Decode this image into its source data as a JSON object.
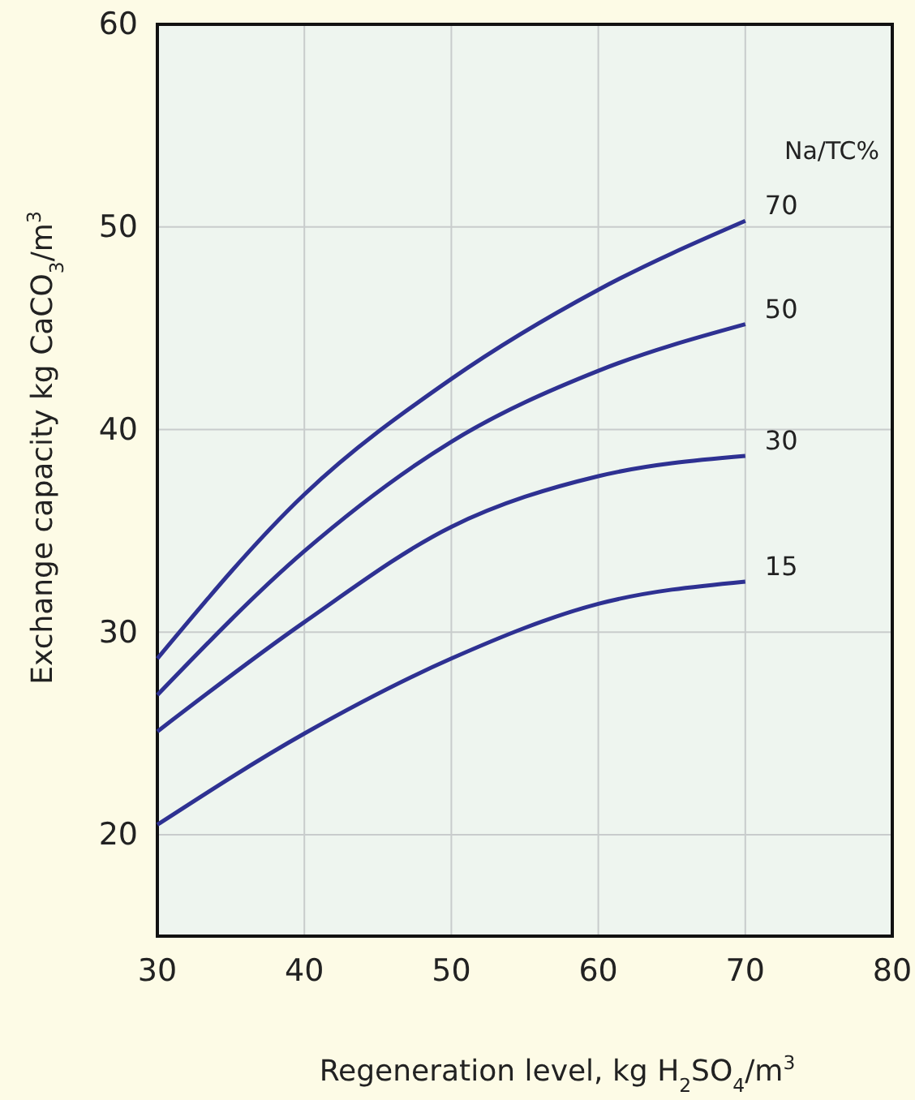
{
  "chart_data": {
    "type": "line",
    "xlabel": "Regeneration level, kg H$_{2}$SO$_{4}$/m$^{3}$",
    "ylabel": "Exchange capacity kg CaCO$_{3}$/m$^{3}$",
    "legend_title": "Na/TC%",
    "x": [
      30,
      40,
      50,
      60,
      70
    ],
    "series": [
      {
        "name": "70",
        "color": "#2e3192",
        "values": [
          28.7,
          36.8,
          42.5,
          46.9,
          50.3
        ]
      },
      {
        "name": "50",
        "color": "#2e3192",
        "values": [
          26.9,
          34.0,
          39.4,
          42.9,
          45.2
        ]
      },
      {
        "name": "30",
        "color": "#2e3192",
        "values": [
          25.1,
          30.5,
          35.2,
          37.7,
          38.7
        ]
      },
      {
        "name": "15",
        "color": "#2e3192",
        "values": [
          20.5,
          25.0,
          28.7,
          31.4,
          32.5
        ]
      }
    ],
    "xlim": [
      30,
      80
    ],
    "xticks": [
      30,
      40,
      50,
      60,
      70,
      80
    ],
    "ylim": [
      15,
      60
    ],
    "yticks": [
      20,
      30,
      40,
      50,
      60
    ],
    "grid": true,
    "marker": "none",
    "line_style": "solid"
  }
}
